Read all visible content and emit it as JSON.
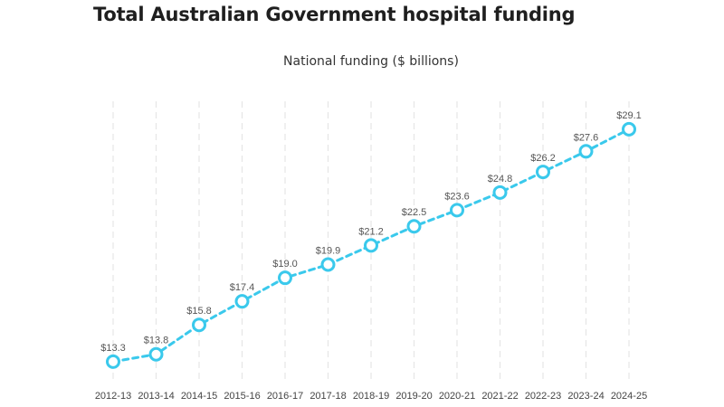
{
  "header": {
    "title": "Total Australian Government hospital funding"
  },
  "chart_data": {
    "type": "line",
    "title": "Total Australian Government hospital funding",
    "subtitle": "National funding ($ billions)",
    "xlabel": "",
    "ylabel": "",
    "categories": [
      "2012-13",
      "2013-14",
      "2014-15",
      "2015-16",
      "2016-17",
      "2017-18",
      "2018-19",
      "2019-20",
      "2020-21",
      "2021-22",
      "2022-23",
      "2023-24",
      "2024-25"
    ],
    "series": [
      {
        "name": "National funding",
        "values": [
          13.3,
          13.8,
          15.8,
          17.4,
          19.0,
          19.9,
          21.2,
          22.5,
          23.6,
          24.8,
          26.2,
          27.6,
          29.1
        ],
        "labels": [
          "$13.3",
          "$13.8",
          "$15.8",
          "$17.4",
          "$19.0",
          "$19.9",
          "$21.2",
          "$22.5",
          "$23.6",
          "$24.8",
          "$26.2",
          "$27.6",
          "$29.1"
        ]
      }
    ],
    "ylim": [
      12,
      31
    ],
    "grid": "vertical-dashed",
    "legend": "none",
    "colors": {
      "line": "#3ac9ec",
      "grid": "#e6e6e6"
    }
  }
}
